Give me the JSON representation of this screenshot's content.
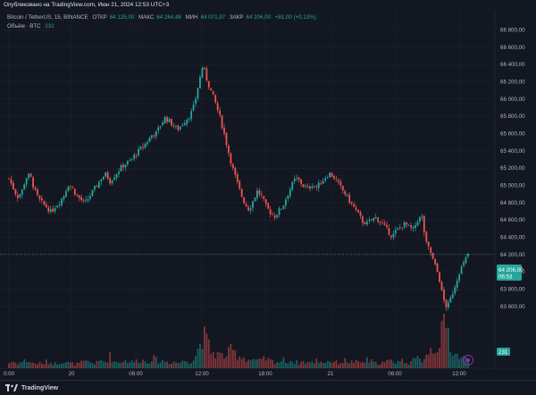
{
  "publish_note": "Опубликовано на TradingView.com, Июн 21, 2024 12:53 UTC+3",
  "legend": {
    "symbol": "Bitcoin / TetherUS, 15, BINANCE",
    "open_label": "ОТКР",
    "open_value": "64 125,00",
    "high_label": "МАКС",
    "high_value": "64 264,48",
    "low_label": "МИН",
    "low_value": "64 071,97",
    "close_label": "ЗАКР",
    "close_value": "64 206,00",
    "change": "+81,00 (+0,13%)"
  },
  "volume_legend": {
    "label": "Объём · BTC",
    "value": "231"
  },
  "price_label": {
    "value": "64 206,00",
    "countdown": "06:53"
  },
  "volume_label": {
    "value": "231"
  },
  "footer": {
    "brand": "TradingView"
  },
  "colors": {
    "background": "#131722",
    "up": "#26a69a",
    "down": "#ef5350",
    "grid": "#1e222d",
    "axis_text": "#b2b5be"
  },
  "icons": {
    "settings": "goto-realtime-icon",
    "logo": "tradingview-logo-icon"
  },
  "chart_data": {
    "type": "candlestick",
    "symbol": "BTCUSDT",
    "interval": "15",
    "y_ticks": [
      "66 800,00",
      "66 600,00",
      "66 400,00",
      "66 200,00",
      "66 000,00",
      "65 800,00",
      "65 600,00",
      "65 400,00",
      "65 200,00",
      "65 000,00",
      "64 800,00",
      "64 600,00",
      "64 400,00",
      "64 200,00",
      "64 000,00",
      "63 800,00",
      "63 600,00"
    ],
    "y_tick_values": [
      66800,
      66600,
      66400,
      66200,
      66000,
      65800,
      65600,
      65400,
      65200,
      65000,
      64800,
      64600,
      64400,
      64200,
      64000,
      63800,
      63600
    ],
    "x_ticks": [
      "0:00",
      "20",
      "06:00",
      "12:00",
      "18:00",
      "21",
      "06:00",
      "12:00"
    ],
    "ylim": [
      63340,
      66960
    ],
    "close_path": [
      65080,
      64970,
      64870,
      64920,
      65090,
      65120,
      64960,
      64840,
      64790,
      64750,
      64690,
      64760,
      64810,
      64880,
      65010,
      64970,
      64890,
      64840,
      64790,
      64860,
      64940,
      65010,
      65090,
      65130,
      65050,
      65110,
      65170,
      65230,
      65260,
      65290,
      65360,
      65410,
      65460,
      65520,
      65590,
      65610,
      65700,
      65780,
      65750,
      65690,
      65650,
      65700,
      65760,
      65810,
      65930,
      66170,
      66390,
      66220,
      66090,
      65960,
      65800,
      65620,
      65410,
      65220,
      65060,
      64910,
      64790,
      64720,
      64830,
      64940,
      64870,
      64760,
      64690,
      64640,
      64700,
      64760,
      64880,
      64990,
      65080,
      65050,
      64990,
      64960,
      65010,
      64980,
      65030,
      65090,
      65140,
      65100,
      65030,
      64960,
      64890,
      64810,
      64740,
      64660,
      64580,
      64560,
      64600,
      64630,
      64590,
      64530,
      64470,
      64410,
      64480,
      64520,
      64560,
      64510,
      64490,
      64600,
      64640,
      64330,
      64240,
      64090,
      63960,
      63700,
      63580,
      63710,
      63860,
      64010,
      64100,
      64206
    ],
    "volume_profile": [
      0.08,
      0.1,
      0.07,
      0.09,
      0.12,
      0.09,
      0.07,
      0.08,
      0.06,
      0.1,
      0.08,
      0.07,
      0.09,
      0.11,
      0.08,
      0.07,
      0.06,
      0.08,
      0.09,
      0.1,
      0.07,
      0.08,
      0.12,
      0.09,
      0.18,
      0.1,
      0.09,
      0.11,
      0.12,
      0.09,
      0.1,
      0.13,
      0.11,
      0.09,
      0.16,
      0.12,
      0.1,
      0.11,
      0.09,
      0.1,
      0.08,
      0.09,
      0.12,
      0.1,
      0.14,
      0.3,
      0.5,
      0.4,
      0.25,
      0.22,
      0.2,
      0.18,
      0.22,
      0.28,
      0.2,
      0.18,
      0.16,
      0.12,
      0.13,
      0.1,
      0.12,
      0.14,
      0.11,
      0.1,
      0.09,
      0.12,
      0.1,
      0.11,
      0.09,
      0.08,
      0.1,
      0.09,
      0.08,
      0.12,
      0.1,
      0.09,
      0.11,
      0.1,
      0.08,
      0.09,
      0.12,
      0.09,
      0.1,
      0.08,
      0.09,
      0.12,
      0.1,
      0.07,
      0.09,
      0.08,
      0.1,
      0.11,
      0.09,
      0.12,
      0.1,
      0.09,
      0.11,
      0.14,
      0.12,
      0.22,
      0.28,
      0.3,
      0.35,
      0.58,
      0.62,
      0.3,
      0.2,
      0.18,
      0.15,
      0.12
    ]
  }
}
